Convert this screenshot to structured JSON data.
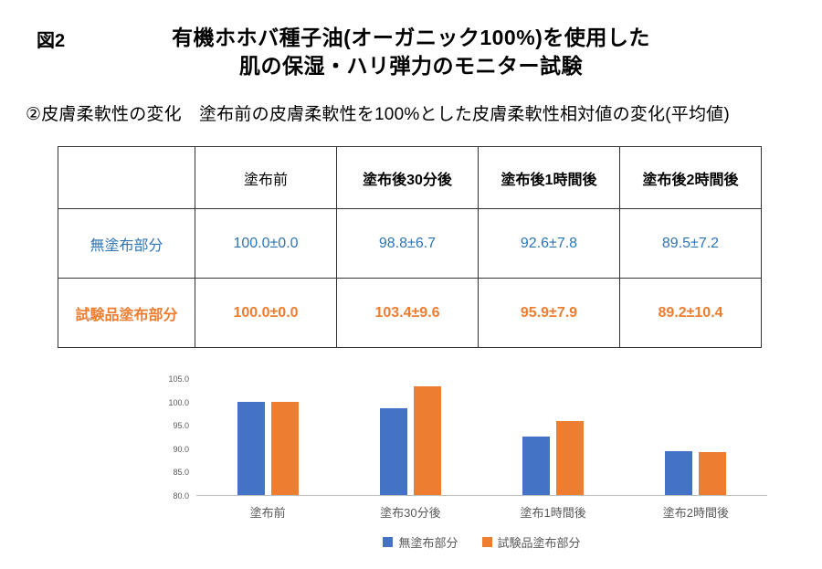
{
  "figure": {
    "label": "図2",
    "title_line1": "有機ホホバ種子油(オーガニック100%)を使用した",
    "title_line2": "肌の保湿・ハリ弾力のモニター試験",
    "subtitle": "②皮膚柔軟性の変化　塗布前の皮膚柔軟性を100%とした皮膚柔軟性相対値の変化(平均値)"
  },
  "table": {
    "headers": [
      "",
      "塗布前",
      "塗布後30分後",
      "塗布後1時間後",
      "塗布後2時間後"
    ],
    "rows": [
      {
        "label": "無塗布部分",
        "color": "#2E75B6",
        "values": [
          "100.0±0.0",
          "98.8±6.7",
          "92.6±7.8",
          "89.5±7.2"
        ]
      },
      {
        "label": "試験品塗布部分",
        "color": "#ED7D31",
        "values": [
          "100.0±0.0",
          "103.4±9.6",
          "95.9±7.9",
          "89.2±10.4"
        ]
      }
    ]
  },
  "chart_data": {
    "type": "bar",
    "title": "",
    "categories": [
      "塗布前",
      "塗布30分後",
      "塗布1時間後",
      "塗布2時間後"
    ],
    "series": [
      {
        "name": "無塗布部分",
        "color": "#4472C4",
        "values": [
          100.0,
          98.8,
          92.6,
          89.5
        ]
      },
      {
        "name": "試験品塗布部分",
        "color": "#ED7D31",
        "values": [
          100.0,
          103.4,
          95.9,
          89.2
        ]
      }
    ],
    "xlabel": "",
    "ylabel": "",
    "ylim": [
      80.0,
      105.0
    ],
    "yticks": [
      "105.0",
      "100.0",
      "95.0",
      "90.0",
      "85.0",
      "80.0"
    ],
    "grid": false,
    "legend_position": "bottom"
  }
}
